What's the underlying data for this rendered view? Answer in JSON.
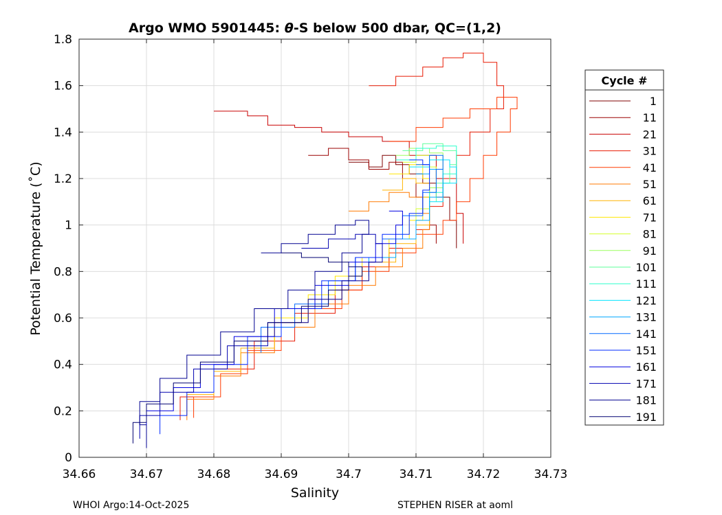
{
  "chart_data": {
    "type": "line",
    "title_prefix": "Argo WMO 5901445: ",
    "title_theta": "θ",
    "title_suffix": "-S below 500 dbar,  QC=(1,2)",
    "xlabel": "Salinity",
    "ylabel": "Potential Temperature (˚C)",
    "xlim": [
      34.66,
      34.73
    ],
    "ylim": [
      0,
      1.8
    ],
    "xticks": [
      "34.66",
      "34.67",
      "34.68",
      "34.69",
      "34.7",
      "34.71",
      "34.72",
      "34.73"
    ],
    "yticks": [
      "0",
      "0.2",
      "0.4",
      "0.6",
      "0.8",
      "1",
      "1.2",
      "1.4",
      "1.6",
      "1.8"
    ],
    "grid": true,
    "legend": {
      "title": "Cycle #",
      "placement": "right-outside",
      "entries": [
        {
          "label": "1",
          "color": "#7f0000"
        },
        {
          "label": "11",
          "color": "#9a0000"
        },
        {
          "label": "21",
          "color": "#c80000"
        },
        {
          "label": "31",
          "color": "#e81800"
        },
        {
          "label": "41",
          "color": "#ff3a00"
        },
        {
          "label": "51",
          "color": "#ff7a00"
        },
        {
          "label": "61",
          "color": "#ffb400"
        },
        {
          "label": "71",
          "color": "#ffe600"
        },
        {
          "label": "81",
          "color": "#d4ff2a"
        },
        {
          "label": "91",
          "color": "#9aff5c"
        },
        {
          "label": "101",
          "color": "#5cff9a"
        },
        {
          "label": "111",
          "color": "#2affcc"
        },
        {
          "label": "121",
          "color": "#00e4ff"
        },
        {
          "label": "131",
          "color": "#00a8ff"
        },
        {
          "label": "141",
          "color": "#0068ff"
        },
        {
          "label": "151",
          "color": "#0028ff"
        },
        {
          "label": "161",
          "color": "#0000e0"
        },
        {
          "label": "171",
          "color": "#0000b0"
        },
        {
          "label": "181",
          "color": "#000090"
        },
        {
          "label": "191",
          "color": "#000070"
        }
      ]
    },
    "series": [
      {
        "name": "1",
        "color": "#7f0000",
        "points": [
          [
            34.7,
            1.27
          ],
          [
            34.703,
            1.25
          ],
          [
            34.705,
            1.3
          ],
          [
            34.707,
            1.26
          ],
          [
            34.709,
            1.22
          ],
          [
            34.711,
            1.18
          ],
          [
            34.713,
            1.12
          ],
          [
            34.715,
            1.02
          ],
          [
            34.716,
            0.9
          ]
        ]
      },
      {
        "name": "11",
        "color": "#9a0000",
        "points": [
          [
            34.694,
            1.3
          ],
          [
            34.697,
            1.33
          ],
          [
            34.7,
            1.28
          ],
          [
            34.703,
            1.24
          ],
          [
            34.706,
            1.27
          ],
          [
            34.708,
            1.2
          ],
          [
            34.71,
            1.12
          ],
          [
            34.712,
            1.0
          ],
          [
            34.713,
            0.92
          ]
        ]
      },
      {
        "name": "21",
        "color": "#c80000",
        "points": [
          [
            34.68,
            1.49
          ],
          [
            34.685,
            1.47
          ],
          [
            34.688,
            1.43
          ],
          [
            34.692,
            1.42
          ],
          [
            34.696,
            1.4
          ],
          [
            34.7,
            1.38
          ],
          [
            34.705,
            1.36
          ],
          [
            34.709,
            1.3
          ],
          [
            34.713,
            1.2
          ],
          [
            34.716,
            1.05
          ],
          [
            34.717,
            0.92
          ]
        ]
      },
      {
        "name": "31",
        "color": "#e81800",
        "points": [
          [
            34.703,
            1.6
          ],
          [
            34.707,
            1.64
          ],
          [
            34.711,
            1.68
          ],
          [
            34.714,
            1.72
          ],
          [
            34.717,
            1.74
          ],
          [
            34.72,
            1.7
          ],
          [
            34.722,
            1.6
          ],
          [
            34.723,
            1.5
          ],
          [
            34.721,
            1.4
          ],
          [
            34.718,
            1.3
          ],
          [
            34.716,
            1.2
          ],
          [
            34.714,
            1.08
          ],
          [
            34.712,
            0.98
          ],
          [
            34.71,
            0.9
          ],
          [
            34.706,
            0.82
          ],
          [
            34.702,
            0.72
          ],
          [
            34.698,
            0.62
          ],
          [
            34.692,
            0.5
          ],
          [
            34.686,
            0.38
          ],
          [
            34.68,
            0.26
          ],
          [
            34.675,
            0.16
          ]
        ]
      },
      {
        "name": "41",
        "color": "#ff3a00",
        "points": [
          [
            34.706,
            1.36
          ],
          [
            34.71,
            1.42
          ],
          [
            34.714,
            1.46
          ],
          [
            34.718,
            1.5
          ],
          [
            34.722,
            1.55
          ],
          [
            34.725,
            1.5
          ],
          [
            34.724,
            1.4
          ],
          [
            34.722,
            1.3
          ],
          [
            34.72,
            1.2
          ],
          [
            34.718,
            1.1
          ],
          [
            34.716,
            1.02
          ],
          [
            34.714,
            0.96
          ],
          [
            34.71,
            0.88
          ],
          [
            34.706,
            0.8
          ],
          [
            34.702,
            0.72
          ],
          [
            34.699,
            0.64
          ],
          [
            34.695,
            0.56
          ],
          [
            34.69,
            0.46
          ],
          [
            34.685,
            0.36
          ],
          [
            34.681,
            0.26
          ],
          [
            34.677,
            0.17
          ]
        ]
      },
      {
        "name": "51",
        "color": "#ff7a00",
        "points": [
          [
            34.7,
            1.06
          ],
          [
            34.703,
            1.1
          ],
          [
            34.706,
            1.14
          ],
          [
            34.709,
            1.12
          ],
          [
            34.711,
            1.05
          ],
          [
            34.712,
            0.98
          ],
          [
            34.711,
            0.9
          ],
          [
            34.708,
            0.82
          ],
          [
            34.704,
            0.74
          ],
          [
            34.7,
            0.66
          ],
          [
            34.695,
            0.56
          ],
          [
            34.689,
            0.45
          ],
          [
            34.684,
            0.35
          ],
          [
            34.68,
            0.25
          ],
          [
            34.676,
            0.16
          ]
        ]
      },
      {
        "name": "61",
        "color": "#ffb400",
        "points": [
          [
            34.705,
            1.15
          ],
          [
            34.708,
            1.2
          ],
          [
            34.71,
            1.18
          ],
          [
            34.712,
            1.1
          ],
          [
            34.712,
            1.0
          ],
          [
            34.71,
            0.92
          ],
          [
            34.707,
            0.84
          ],
          [
            34.703,
            0.76
          ],
          [
            34.699,
            0.68
          ],
          [
            34.694,
            0.58
          ],
          [
            34.689,
            0.47
          ],
          [
            34.684,
            0.37
          ],
          [
            34.68,
            0.27
          ],
          [
            34.676,
            0.18
          ]
        ]
      },
      {
        "name": "71",
        "color": "#ffe600",
        "points": [
          [
            34.706,
            1.22
          ],
          [
            34.709,
            1.26
          ],
          [
            34.711,
            1.2
          ],
          [
            34.712,
            1.12
          ],
          [
            34.711,
            1.02
          ],
          [
            34.709,
            0.94
          ],
          [
            34.706,
            0.86
          ],
          [
            34.702,
            0.78
          ],
          [
            34.698,
            0.7
          ],
          [
            34.694,
            0.6
          ],
          [
            34.689,
            0.5
          ]
        ]
      },
      {
        "name": "81",
        "color": "#d4ff2a",
        "points": [
          [
            34.708,
            1.27
          ],
          [
            34.71,
            1.3
          ],
          [
            34.712,
            1.25
          ],
          [
            34.713,
            1.16
          ],
          [
            34.712,
            1.07
          ],
          [
            34.71,
            0.98
          ]
        ]
      },
      {
        "name": "91",
        "color": "#9aff5c",
        "points": [
          [
            34.707,
            1.3
          ],
          [
            34.709,
            1.33
          ],
          [
            34.712,
            1.31
          ],
          [
            34.714,
            1.25
          ],
          [
            34.714,
            1.16
          ],
          [
            34.712,
            1.08
          ]
        ]
      },
      {
        "name": "101",
        "color": "#5cff9a",
        "points": [
          [
            34.708,
            1.32
          ],
          [
            34.711,
            1.35
          ],
          [
            34.714,
            1.32
          ],
          [
            34.716,
            1.26
          ],
          [
            34.715,
            1.18
          ],
          [
            34.713,
            1.1
          ]
        ]
      },
      {
        "name": "111",
        "color": "#2affcc",
        "points": [
          [
            34.707,
            1.28
          ],
          [
            34.71,
            1.33
          ],
          [
            34.713,
            1.34
          ],
          [
            34.716,
            1.3
          ],
          [
            34.716,
            1.22
          ],
          [
            34.714,
            1.14
          ],
          [
            34.712,
            1.06
          ]
        ]
      },
      {
        "name": "121",
        "color": "#00e4ff",
        "points": [
          [
            34.709,
            1.25
          ],
          [
            34.712,
            1.28
          ],
          [
            34.715,
            1.25
          ],
          [
            34.716,
            1.18
          ],
          [
            34.714,
            1.1
          ],
          [
            34.712,
            1.02
          ]
        ]
      },
      {
        "name": "131",
        "color": "#00a8ff",
        "points": [
          [
            34.71,
            1.22
          ],
          [
            34.712,
            1.24
          ],
          [
            34.714,
            1.2
          ],
          [
            34.714,
            1.12
          ],
          [
            34.712,
            1.02
          ],
          [
            34.71,
            0.94
          ],
          [
            34.707,
            0.86
          ],
          [
            34.703,
            0.78
          ]
        ]
      },
      {
        "name": "141",
        "color": "#0068ff",
        "points": [
          [
            34.71,
            1.26
          ],
          [
            34.712,
            1.3
          ],
          [
            34.714,
            1.24
          ],
          [
            34.713,
            1.14
          ],
          [
            34.711,
            1.04
          ],
          [
            34.708,
            0.94
          ],
          [
            34.705,
            0.86
          ],
          [
            34.701,
            0.76
          ],
          [
            34.697,
            0.66
          ],
          [
            34.692,
            0.56
          ],
          [
            34.687,
            0.45
          ]
        ]
      },
      {
        "name": "151",
        "color": "#0028ff",
        "points": [
          [
            34.709,
            1.28
          ],
          [
            34.711,
            1.26
          ],
          [
            34.712,
            1.15
          ],
          [
            34.711,
            1.05
          ],
          [
            34.709,
            0.96
          ],
          [
            34.705,
            0.86
          ],
          [
            34.701,
            0.76
          ],
          [
            34.696,
            0.64
          ],
          [
            34.69,
            0.52
          ],
          [
            34.685,
            0.4
          ],
          [
            34.68,
            0.28
          ],
          [
            34.676,
            0.18
          ],
          [
            34.672,
            0.1
          ]
        ]
      },
      {
        "name": "161",
        "color": "#0000e0",
        "points": [
          [
            34.706,
            1.06
          ],
          [
            34.708,
            1.0
          ],
          [
            34.707,
            0.92
          ],
          [
            34.704,
            0.84
          ],
          [
            34.7,
            0.74
          ],
          [
            34.695,
            0.64
          ],
          [
            34.689,
            0.52
          ],
          [
            34.683,
            0.4
          ],
          [
            34.678,
            0.3
          ],
          [
            34.674,
            0.2
          ],
          [
            34.67,
            0.12
          ]
        ]
      },
      {
        "name": "171",
        "color": "#0000b0",
        "points": [
          [
            34.693,
            0.9
          ],
          [
            34.697,
            0.94
          ],
          [
            34.701,
            0.96
          ],
          [
            34.704,
            0.92
          ],
          [
            34.705,
            0.84
          ],
          [
            34.703,
            0.76
          ],
          [
            34.699,
            0.68
          ],
          [
            34.694,
            0.58
          ],
          [
            34.688,
            0.48
          ],
          [
            34.682,
            0.38
          ],
          [
            34.677,
            0.28
          ],
          [
            34.672,
            0.18
          ],
          [
            34.669,
            0.08
          ]
        ]
      },
      {
        "name": "181",
        "color": "#000090",
        "points": [
          [
            34.687,
            0.88
          ],
          [
            34.69,
            0.92
          ],
          [
            34.694,
            0.96
          ],
          [
            34.698,
            1.0
          ],
          [
            34.701,
            1.02
          ],
          [
            34.703,
            0.96
          ],
          [
            34.702,
            0.88
          ],
          [
            34.699,
            0.8
          ],
          [
            34.695,
            0.72
          ],
          [
            34.691,
            0.64
          ],
          [
            34.686,
            0.54
          ],
          [
            34.681,
            0.44
          ],
          [
            34.676,
            0.34
          ],
          [
            34.672,
            0.24
          ],
          [
            34.669,
            0.14
          ],
          [
            34.67,
            0.04
          ]
        ]
      },
      {
        "name": "191",
        "color": "#000070",
        "points": [
          [
            34.69,
            0.88
          ],
          [
            34.693,
            0.86
          ],
          [
            34.697,
            0.84
          ],
          [
            34.7,
            0.82
          ],
          [
            34.702,
            0.78
          ],
          [
            34.7,
            0.72
          ],
          [
            34.697,
            0.65
          ],
          [
            34.693,
            0.58
          ],
          [
            34.688,
            0.5
          ],
          [
            34.683,
            0.41
          ],
          [
            34.678,
            0.32
          ],
          [
            34.674,
            0.23
          ],
          [
            34.67,
            0.15
          ],
          [
            34.668,
            0.06
          ]
        ]
      }
    ]
  },
  "footer": {
    "left": "WHOI Argo:14-Oct-2025",
    "right": "STEPHEN RISER at aoml"
  }
}
